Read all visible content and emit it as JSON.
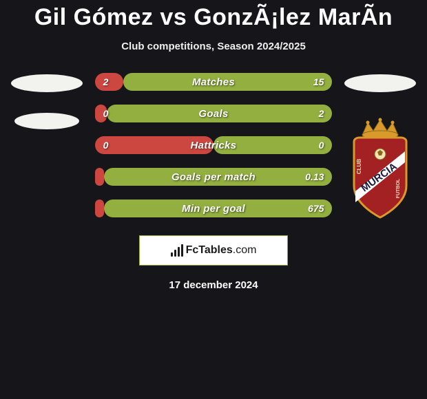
{
  "title": "Gil Gómez vs GonzÃ¡lez MarÃ­n",
  "subtitle": "Club competitions, Season 2024/2025",
  "date": "17 december 2024",
  "brand": {
    "name": "FcTables",
    "domain": ".com"
  },
  "colors": {
    "background": "#15151a",
    "left_cap": "#cd4741",
    "right_cap": "#92af3f",
    "bar_label": "#ffffff",
    "ellipse": "#f2f2ef",
    "brand_border": "#93b03f"
  },
  "bars": [
    {
      "label": "Matches",
      "left": "2",
      "right": "15",
      "left_pct": 12,
      "right_pct": 88
    },
    {
      "label": "Goals",
      "left": "0",
      "right": "2",
      "left_pct": 5,
      "right_pct": 95
    },
    {
      "label": "Hattricks",
      "left": "0",
      "right": "0",
      "left_pct": 50,
      "right_pct": 50
    },
    {
      "label": "Goals per match",
      "left": "",
      "right": "0.13",
      "left_pct": 4,
      "right_pct": 96
    },
    {
      "label": "Min per goal",
      "left": "",
      "right": "675",
      "left_pct": 4,
      "right_pct": 96
    }
  ],
  "crest": {
    "shield_fill": "#a32023",
    "shield_stroke": "#d99a2b",
    "crown_fill": "#d99a2b",
    "text": "MURCIA",
    "subtext_top": "CLUB",
    "subtext_bot": "FUTBOL"
  }
}
